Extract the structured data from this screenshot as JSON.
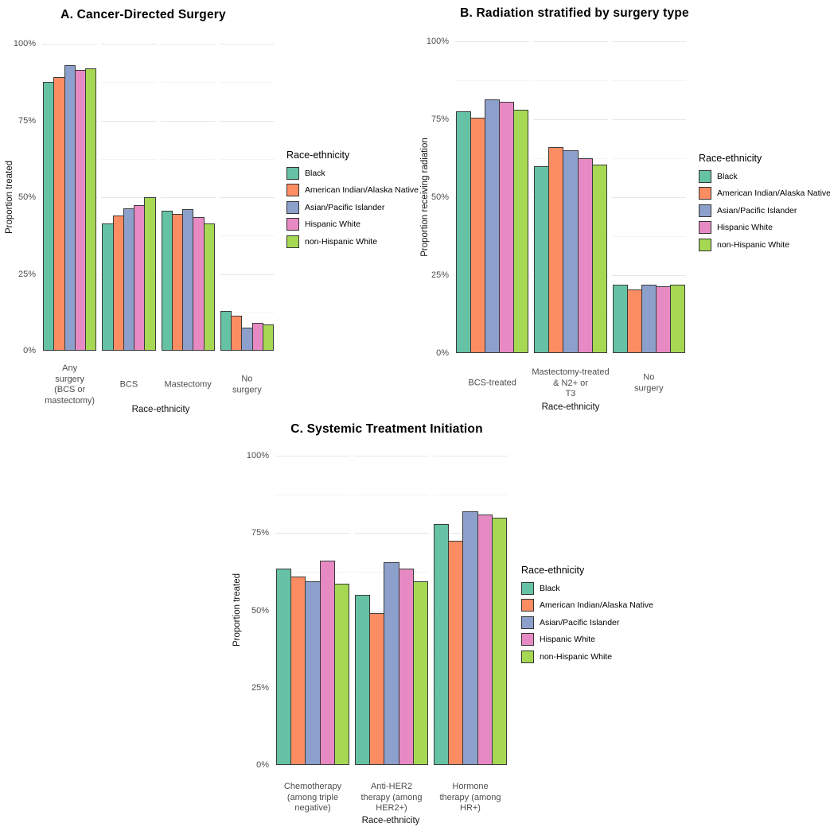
{
  "legend": {
    "title": "Race-ethnicity",
    "entries": [
      {
        "label": "Black",
        "color": "#66C2A5"
      },
      {
        "label": "American Indian/Alaska Native",
        "color": "#FC8D62"
      },
      {
        "label": "Asian/Pacific Islander",
        "color": "#8DA0CB"
      },
      {
        "label": "Hispanic White",
        "color": "#E78AC3"
      },
      {
        "label": "non-Hispanic White",
        "color": "#A6D854"
      }
    ]
  },
  "chart_data": [
    {
      "panel": "A",
      "type": "bar",
      "title": "A. Cancer-Directed Surgery",
      "xlabel": "Race-ethnicity",
      "ylabel": "Proportion treated",
      "ylim": [
        0,
        100
      ],
      "yticks": [
        "0%",
        "25%",
        "50%",
        "75%",
        "100%"
      ],
      "grid": "horizontal major and minor gridlines, segmented per category cell",
      "legend_position": "right",
      "categories": [
        "Any\nsurgery\n(BCS or\nmastectomy)",
        "BCS",
        "Mastectomy",
        "No\nsurgery"
      ],
      "series": [
        {
          "name": "Black",
          "values": [
            87.5,
            41.5,
            45.5,
            13
          ]
        },
        {
          "name": "American Indian/Alaska Native",
          "values": [
            89,
            44,
            44.5,
            11.5
          ]
        },
        {
          "name": "Asian/Pacific Islander",
          "values": [
            93,
            46.5,
            46,
            7.5
          ]
        },
        {
          "name": "Hispanic White",
          "values": [
            91.5,
            47.5,
            43.5,
            9
          ]
        },
        {
          "name": "non-Hispanic White",
          "values": [
            92,
            50,
            41.5,
            8.5
          ]
        }
      ]
    },
    {
      "panel": "B",
      "type": "bar",
      "title": "B. Radiation stratified by surgery type",
      "xlabel": "Race-ethnicity",
      "ylabel": "Proportion receiving radiation",
      "ylim": [
        0,
        100
      ],
      "yticks": [
        "0%",
        "25%",
        "50%",
        "75%",
        "100%"
      ],
      "grid": "horizontal major and minor gridlines, segmented per category cell",
      "legend_position": "right",
      "categories": [
        "BCS-treated",
        "Mastectomy-treated\n& N2+ or\nT3",
        "No\nsurgery"
      ],
      "series": [
        {
          "name": "Black",
          "values": [
            77.5,
            60,
            22
          ]
        },
        {
          "name": "American Indian/Alaska Native",
          "values": [
            75.5,
            66,
            20.5
          ]
        },
        {
          "name": "Asian/Pacific Islander",
          "values": [
            81.5,
            65,
            22
          ]
        },
        {
          "name": "Hispanic White",
          "values": [
            80.5,
            62.5,
            21.5
          ]
        },
        {
          "name": "non-Hispanic White",
          "values": [
            78,
            60.5,
            22
          ]
        }
      ]
    },
    {
      "panel": "C",
      "type": "bar",
      "title": "C. Systemic Treatment Initiation",
      "xlabel": "Race-ethnicity",
      "ylabel": "Proportion treated",
      "ylim": [
        0,
        100
      ],
      "yticks": [
        "0%",
        "25%",
        "50%",
        "75%",
        "100%"
      ],
      "grid": "horizontal major and minor gridlines, segmented per category cell",
      "legend_position": "right",
      "categories": [
        "Chemotherapy\n(among triple\nnegative)",
        "Anti-HER2\ntherapy (among\nHER2+)",
        "Hormone\ntherapy (among\nHR+)"
      ],
      "series": [
        {
          "name": "Black",
          "values": [
            63.5,
            55,
            78
          ]
        },
        {
          "name": "American Indian/Alaska Native",
          "values": [
            61,
            49,
            72.5
          ]
        },
        {
          "name": "Asian/Pacific Islander",
          "values": [
            59.5,
            65.5,
            82
          ]
        },
        {
          "name": "Hispanic White",
          "values": [
            66,
            63.5,
            81
          ]
        },
        {
          "name": "non-Hispanic White",
          "values": [
            58.5,
            59.5,
            80
          ]
        }
      ]
    }
  ]
}
